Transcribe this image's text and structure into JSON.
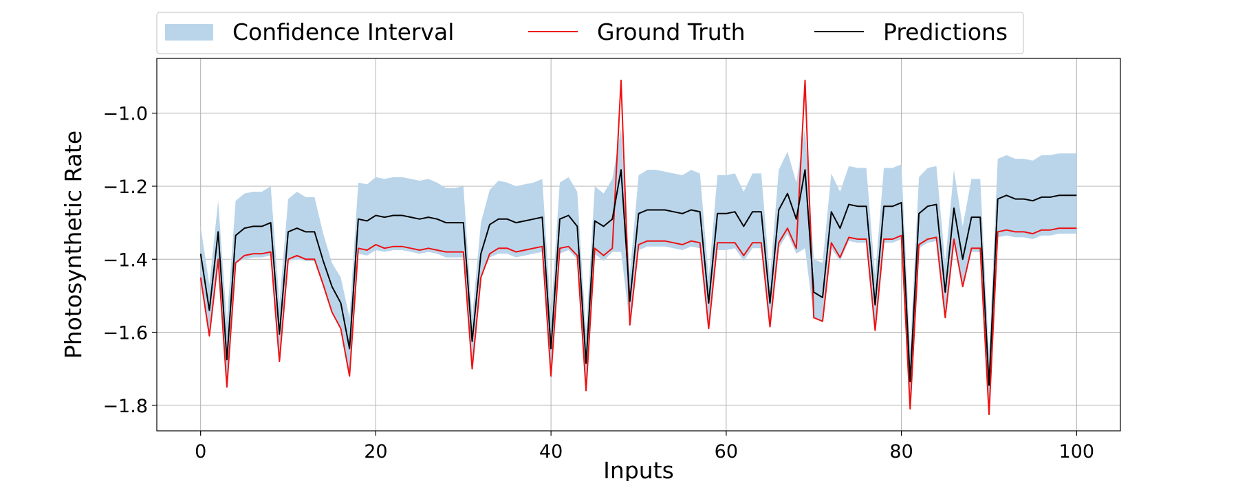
{
  "chart_data": {
    "type": "line",
    "xlabel": "Inputs",
    "ylabel": "Photosynthetic Rate",
    "xlim": [
      -5,
      105
    ],
    "ylim": [
      -1.87,
      -0.85
    ],
    "xticks": [
      0,
      20,
      40,
      60,
      80,
      100
    ],
    "yticks": [
      -1.8,
      -1.6,
      -1.4,
      -1.2,
      -1.0
    ],
    "xtick_labels": [
      "0",
      "20",
      "40",
      "60",
      "80",
      "100"
    ],
    "ytick_labels": [
      "−1.8",
      "−1.6",
      "−1.4",
      "−1.2",
      "−1.0"
    ],
    "grid": true,
    "legend_position": "top",
    "colors": {
      "interval": "#bad5ea",
      "ground_truth": "#ee1111",
      "predictions": "#000000"
    },
    "legend": [
      {
        "label": "Confidence Interval",
        "kind": "band"
      },
      {
        "label": "Ground Truth",
        "kind": "line"
      },
      {
        "label": "Predictions",
        "kind": "line"
      }
    ],
    "x": [
      0,
      1,
      2,
      3,
      4,
      5,
      6,
      7,
      8,
      9,
      10,
      11,
      12,
      13,
      14,
      15,
      16,
      17,
      18,
      19,
      20,
      21,
      22,
      23,
      24,
      25,
      26,
      27,
      28,
      29,
      30,
      31,
      32,
      33,
      34,
      35,
      36,
      37,
      38,
      39,
      40,
      41,
      42,
      43,
      44,
      45,
      46,
      47,
      48,
      49,
      50,
      51,
      52,
      53,
      54,
      55,
      56,
      57,
      58,
      59,
      60,
      61,
      62,
      63,
      64,
      65,
      66,
      67,
      68,
      69,
      70,
      71,
      72,
      73,
      74,
      75,
      76,
      77,
      78,
      79,
      80,
      81,
      82,
      83,
      84,
      85,
      86,
      87,
      88,
      89,
      90,
      91,
      92,
      93,
      94,
      95,
      96,
      97,
      98,
      99,
      100
    ],
    "series": [
      {
        "name": "Ground Truth",
        "values": [
          -1.45,
          -1.61,
          -1.4,
          -1.75,
          -1.41,
          -1.39,
          -1.385,
          -1.385,
          -1.38,
          -1.68,
          -1.4,
          -1.39,
          -1.4,
          -1.4,
          -1.47,
          -1.545,
          -1.59,
          -1.72,
          -1.37,
          -1.375,
          -1.36,
          -1.37,
          -1.365,
          -1.365,
          -1.37,
          -1.375,
          -1.37,
          -1.375,
          -1.38,
          -1.38,
          -1.38,
          -1.7,
          -1.45,
          -1.385,
          -1.37,
          -1.37,
          -1.38,
          -1.375,
          -1.37,
          -1.365,
          -1.72,
          -1.37,
          -1.365,
          -1.39,
          -1.76,
          -1.37,
          -1.39,
          -1.37,
          -0.91,
          -1.58,
          -1.36,
          -1.35,
          -1.35,
          -1.35,
          -1.355,
          -1.36,
          -1.35,
          -1.355,
          -1.59,
          -1.355,
          -1.355,
          -1.355,
          -1.39,
          -1.355,
          -1.355,
          -1.585,
          -1.355,
          -1.315,
          -1.37,
          -0.91,
          -1.56,
          -1.57,
          -1.355,
          -1.395,
          -1.34,
          -1.345,
          -1.345,
          -1.595,
          -1.345,
          -1.345,
          -1.335,
          -1.81,
          -1.36,
          -1.345,
          -1.34,
          -1.56,
          -1.345,
          -1.475,
          -1.37,
          -1.37,
          -1.825,
          -1.325,
          -1.32,
          -1.325,
          -1.325,
          -1.33,
          -1.32,
          -1.32,
          -1.315,
          -1.315,
          -1.315
        ]
      },
      {
        "name": "Predictions",
        "values": [
          -1.385,
          -1.54,
          -1.325,
          -1.675,
          -1.335,
          -1.315,
          -1.31,
          -1.31,
          -1.3,
          -1.605,
          -1.325,
          -1.315,
          -1.325,
          -1.325,
          -1.405,
          -1.475,
          -1.52,
          -1.645,
          -1.29,
          -1.295,
          -1.28,
          -1.285,
          -1.28,
          -1.28,
          -1.285,
          -1.29,
          -1.285,
          -1.29,
          -1.3,
          -1.3,
          -1.3,
          -1.625,
          -1.385,
          -1.305,
          -1.29,
          -1.29,
          -1.3,
          -1.295,
          -1.29,
          -1.285,
          -1.645,
          -1.29,
          -1.28,
          -1.31,
          -1.685,
          -1.295,
          -1.31,
          -1.29,
          -1.155,
          -1.515,
          -1.275,
          -1.265,
          -1.265,
          -1.265,
          -1.27,
          -1.275,
          -1.265,
          -1.27,
          -1.52,
          -1.275,
          -1.275,
          -1.27,
          -1.31,
          -1.27,
          -1.27,
          -1.52,
          -1.265,
          -1.22,
          -1.29,
          -1.155,
          -1.49,
          -1.505,
          -1.27,
          -1.315,
          -1.25,
          -1.255,
          -1.255,
          -1.525,
          -1.255,
          -1.255,
          -1.245,
          -1.735,
          -1.275,
          -1.255,
          -1.25,
          -1.49,
          -1.26,
          -1.4,
          -1.285,
          -1.285,
          -1.745,
          -1.235,
          -1.225,
          -1.235,
          -1.235,
          -1.24,
          -1.23,
          -1.23,
          -1.225,
          -1.225,
          -1.225
        ]
      },
      {
        "name": "Confidence Interval Upper",
        "values": [
          -1.31,
          -1.47,
          -1.24,
          -1.57,
          -1.24,
          -1.22,
          -1.215,
          -1.215,
          -1.2,
          -1.52,
          -1.235,
          -1.215,
          -1.23,
          -1.23,
          -1.33,
          -1.41,
          -1.45,
          -1.56,
          -1.19,
          -1.195,
          -1.175,
          -1.18,
          -1.175,
          -1.175,
          -1.18,
          -1.185,
          -1.18,
          -1.19,
          -1.205,
          -1.205,
          -1.2,
          -1.56,
          -1.3,
          -1.21,
          -1.185,
          -1.19,
          -1.2,
          -1.195,
          -1.19,
          -1.18,
          -1.55,
          -1.19,
          -1.175,
          -1.215,
          -1.6,
          -1.2,
          -1.22,
          -1.18,
          -1.04,
          -1.44,
          -1.17,
          -1.155,
          -1.155,
          -1.16,
          -1.165,
          -1.17,
          -1.155,
          -1.165,
          -1.45,
          -1.17,
          -1.17,
          -1.165,
          -1.215,
          -1.165,
          -1.165,
          -1.45,
          -1.155,
          -1.105,
          -1.19,
          -1.04,
          -1.4,
          -1.41,
          -1.165,
          -1.215,
          -1.145,
          -1.15,
          -1.15,
          -1.445,
          -1.15,
          -1.15,
          -1.14,
          -1.65,
          -1.175,
          -1.15,
          -1.145,
          -1.41,
          -1.155,
          -1.31,
          -1.18,
          -1.18,
          -1.665,
          -1.125,
          -1.115,
          -1.125,
          -1.125,
          -1.13,
          -1.115,
          -1.115,
          -1.11,
          -1.11,
          -1.11
        ]
      },
      {
        "name": "Confidence Interval Lower",
        "values": [
          -1.45,
          -1.61,
          -1.4,
          -1.75,
          -1.41,
          -1.4,
          -1.395,
          -1.395,
          -1.39,
          -1.68,
          -1.405,
          -1.4,
          -1.405,
          -1.405,
          -1.47,
          -1.545,
          -1.59,
          -1.72,
          -1.385,
          -1.39,
          -1.375,
          -1.38,
          -1.375,
          -1.375,
          -1.38,
          -1.385,
          -1.38,
          -1.385,
          -1.395,
          -1.395,
          -1.395,
          -1.7,
          -1.45,
          -1.395,
          -1.385,
          -1.385,
          -1.395,
          -1.39,
          -1.385,
          -1.38,
          -1.72,
          -1.385,
          -1.375,
          -1.4,
          -1.76,
          -1.385,
          -1.405,
          -1.38,
          -1.38,
          -1.58,
          -1.375,
          -1.365,
          -1.365,
          -1.365,
          -1.37,
          -1.375,
          -1.365,
          -1.37,
          -1.59,
          -1.375,
          -1.375,
          -1.37,
          -1.405,
          -1.37,
          -1.37,
          -1.585,
          -1.37,
          -1.33,
          -1.385,
          -1.37,
          -1.56,
          -1.57,
          -1.37,
          -1.405,
          -1.35,
          -1.355,
          -1.355,
          -1.595,
          -1.355,
          -1.355,
          -1.345,
          -1.81,
          -1.37,
          -1.355,
          -1.35,
          -1.56,
          -1.355,
          -1.475,
          -1.38,
          -1.38,
          -1.825,
          -1.34,
          -1.335,
          -1.34,
          -1.34,
          -1.345,
          -1.335,
          -1.335,
          -1.33,
          -1.33,
          -1.33
        ]
      }
    ]
  }
}
